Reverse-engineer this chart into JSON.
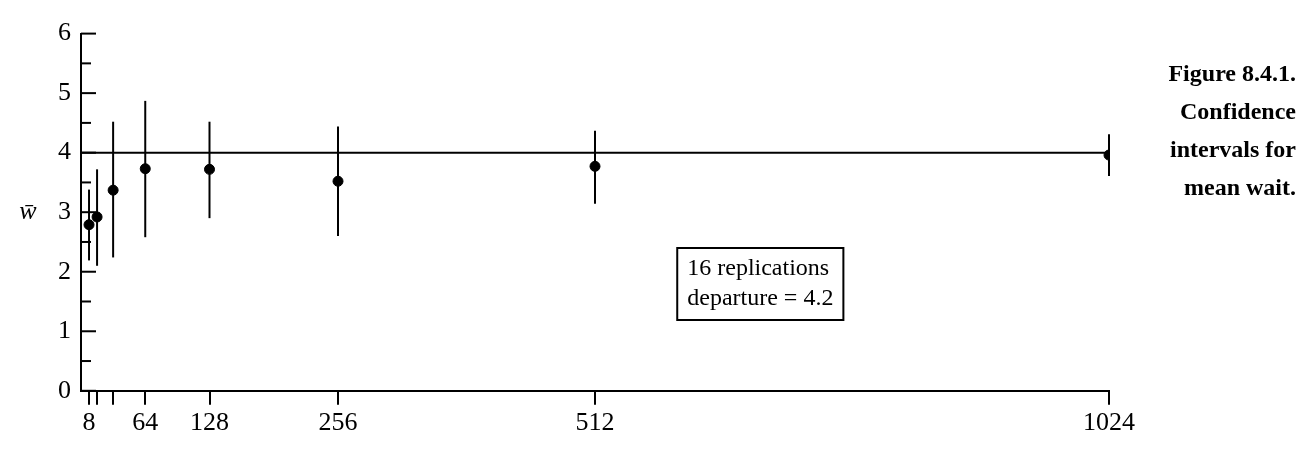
{
  "chart_data": {
    "type": "scatter",
    "title": "Figure 8.4.1. Confidence intervals for mean wait.",
    "ylabel": "w̄",
    "annotations": [
      "16 replications",
      "departure = 4.2"
    ],
    "x": [
      8,
      16,
      32,
      64,
      128,
      256,
      512,
      1024
    ],
    "series": [
      {
        "color": "#000000",
        "values": [
          2.79,
          2.92,
          3.37,
          3.73,
          3.72,
          3.52,
          3.77,
          3.96
        ],
        "errors": [
          [
            2.19,
            3.38
          ],
          [
            2.1,
            3.72
          ],
          [
            2.24,
            4.52
          ],
          [
            2.58,
            4.87
          ],
          [
            2.9,
            4.52
          ],
          [
            2.6,
            4.44
          ],
          [
            3.14,
            4.37
          ],
          [
            3.61,
            4.31
          ]
        ]
      }
    ],
    "xlim": [
      0,
      1024
    ],
    "xticks": [
      8,
      {
        "value": 16,
        "label": null
      },
      {
        "value": 32,
        "label": null
      },
      64,
      128,
      256,
      512,
      1024
    ],
    "ylim": [
      0,
      6
    ],
    "yticks": [
      0,
      {
        "value": 0.5,
        "label": null
      },
      1,
      {
        "value": 1.5,
        "label": null
      },
      2,
      {
        "value": 2.5,
        "label": null
      },
      3,
      {
        "value": 3.5,
        "label": null
      },
      4,
      {
        "value": 4.5,
        "label": null
      },
      5,
      {
        "value": 5.5,
        "label": null
      },
      6
    ],
    "ref_lines": [
      {
        "axis": "y",
        "value": 4,
        "color": "#000000"
      }
    ],
    "marker": "circle",
    "legend": false
  }
}
